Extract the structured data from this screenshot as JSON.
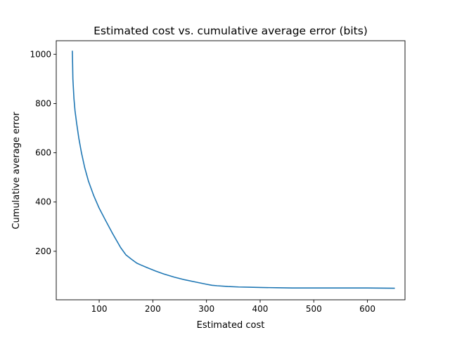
{
  "chart_data": {
    "type": "line",
    "title": "Estimated cost vs. cumulative average error (bits)",
    "xlabel": "Estimated cost",
    "ylabel": "Cumulative average error",
    "xlim": [
      20,
      670
    ],
    "ylim": [
      3,
      1055
    ],
    "xticks": [
      100,
      200,
      300,
      400,
      500,
      600
    ],
    "yticks": [
      200,
      400,
      600,
      800,
      1000
    ],
    "grid": false,
    "legend": "none",
    "series": [
      {
        "color": "#1f77b4",
        "x": [
          50,
          50.5,
          51,
          52,
          53,
          55,
          58,
          62,
          67,
          73,
          80,
          90,
          100,
          112,
          125,
          140,
          150,
          160,
          170,
          177,
          190,
          205,
          220,
          240,
          260,
          280,
          300,
          310,
          320,
          340,
          360,
          380,
          400,
          430,
          460,
          500,
          550,
          600,
          650
        ],
        "y": [
          1012,
          960,
          900,
          860,
          820,
          770,
          720,
          660,
          600,
          540,
          485,
          425,
          375,
          325,
          272,
          215,
          185,
          168,
          152,
          145,
          133,
          120,
          108,
          95,
          84,
          75,
          66,
          62,
          60,
          57,
          55,
          54,
          53,
          52,
          51,
          51,
          51,
          51,
          50
        ]
      }
    ]
  }
}
